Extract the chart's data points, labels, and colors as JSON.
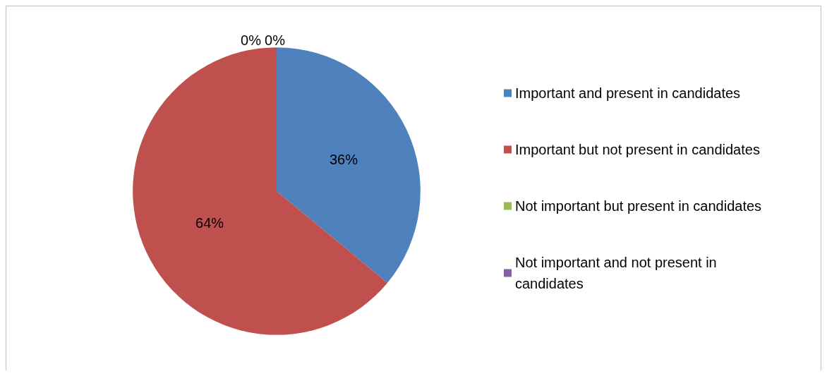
{
  "chart_data": {
    "type": "pie",
    "categories": [
      "Important and present in candidates",
      "Important but not present in candidates",
      "Not important but present in candidates",
      "Not important and not present in candidates"
    ],
    "values": [
      36,
      64,
      0,
      0
    ],
    "colors": [
      "#4f81bd",
      "#c0504d",
      "#9bbb59",
      "#8064a2"
    ],
    "value_labels": [
      "36%",
      "64%",
      "0%",
      "0%"
    ],
    "legend": "right"
  }
}
